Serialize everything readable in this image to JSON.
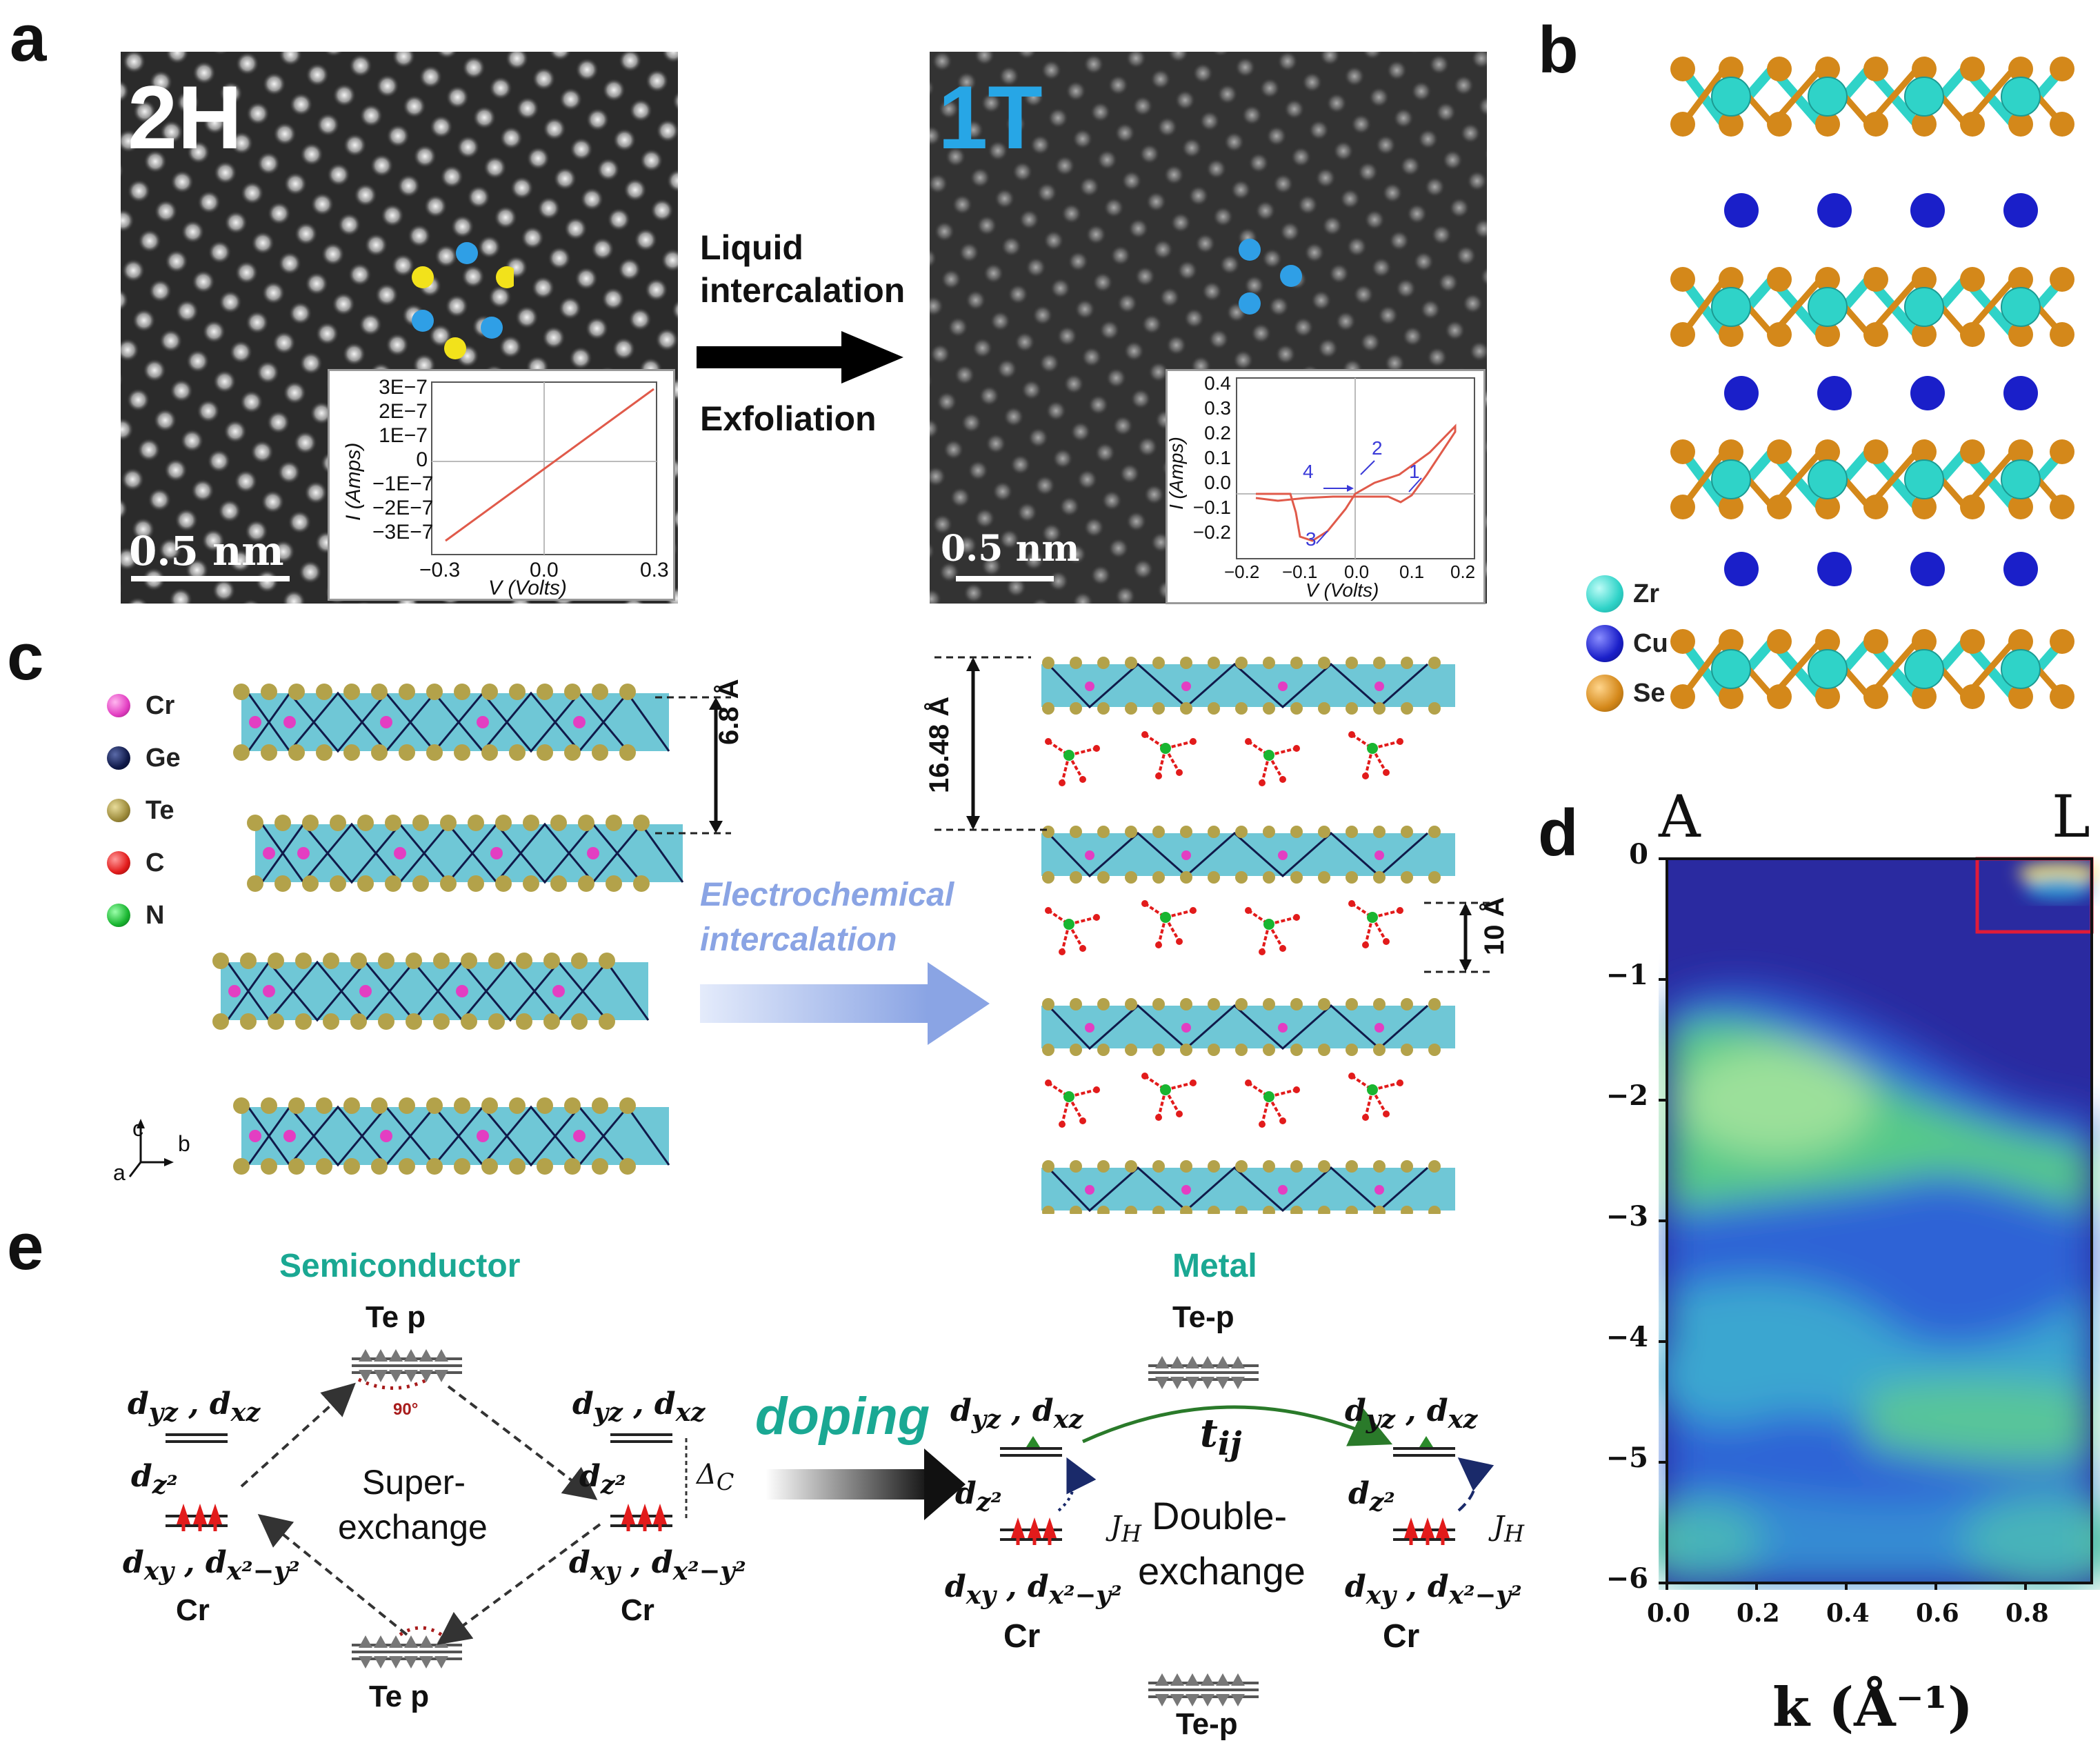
{
  "panel_letters": {
    "a": "a",
    "b": "b",
    "c": "c",
    "d": "d",
    "e": "e"
  },
  "panel_a": {
    "phase_left": "2H",
    "phase_right": "1T",
    "phase_right_color": "#27a6e6",
    "arrow_top": "Liquid",
    "arrow_mid": "intercalation",
    "arrow_bottom": "Exfoliation",
    "scale_left": "0.5 nm",
    "scale_right": "0.5 nm",
    "inset_left": {
      "ylabel": "I (Amps)",
      "xlabel": "V (Volts)",
      "yticks": [
        "3E−7",
        "2E−7",
        "1E−7",
        "0",
        "−1E−7",
        "−2E−7",
        "−3E−7"
      ],
      "xticks": [
        "−0.3",
        "0.0",
        "0.3"
      ]
    },
    "inset_right": {
      "ylabel": "I (Amps)",
      "xlabel": "V (Volts)",
      "yticks": [
        "0.4",
        "0.3",
        "0.2",
        "0.1",
        "0.0",
        "−0.1",
        "−0.2"
      ],
      "xticks": [
        "−0.2",
        "−0.1",
        "0.0",
        "0.1",
        "0.2"
      ],
      "sweep_labels": [
        "1",
        "2",
        "3",
        "4"
      ]
    }
  },
  "panel_b": {
    "legend": [
      {
        "label": "Zr",
        "color": "#2fd3c8"
      },
      {
        "label": "Cu",
        "color": "#1a1fc9"
      },
      {
        "label": "Se",
        "color": "#d4881a"
      }
    ]
  },
  "panel_c": {
    "legend": [
      {
        "label": "Cr",
        "color": "#e33ec2"
      },
      {
        "label": "Ge",
        "color": "#101a4a"
      },
      {
        "label": "Te",
        "color": "#9c8a3a"
      },
      {
        "label": "C",
        "color": "#e21b1b"
      },
      {
        "label": "N",
        "color": "#19b530"
      }
    ],
    "dist_left": "6.8 Å",
    "dist_right_top": "16.48 Å",
    "dist_right_mid": "10 Å",
    "arrow_text_1": "Electrochemical",
    "arrow_text_2": "intercalation",
    "axis_c": "c",
    "axis_b": "b",
    "axis_a": "a"
  },
  "panel_d": {
    "label_left": "A",
    "label_right": "L",
    "xlabel": "k (Å⁻¹)",
    "yticks": [
      "0",
      "−1",
      "−2",
      "−3",
      "−4",
      "−5",
      "−6"
    ],
    "xticks": [
      "0.0",
      "0.2",
      "0.4",
      "0.6",
      "0.8"
    ]
  },
  "panel_e": {
    "title_left": "Semiconductor",
    "title_right": "Metal",
    "te_p": "Te p",
    "te_p_bottom": "Te p",
    "te_p_right_top": "Te-p",
    "te_p_right_bottom": "Te-p",
    "angle": "90°",
    "super_1": "Super-",
    "super_2": "exchange",
    "double_1": "Double-",
    "double_2": "exchange",
    "doping": "doping",
    "cr": "Cr",
    "delta": "Δ",
    "delta_sub": "C",
    "jh": "J",
    "jh_sub": "H",
    "t": "t",
    "t_sub": "ij",
    "dyz": "d",
    "dyz_sub": "yz",
    "dxz_sub": "xz",
    "dz2_sub": "z²",
    "dxy_sub": "xy",
    "dx2y2_sub": "x²−y²"
  }
}
